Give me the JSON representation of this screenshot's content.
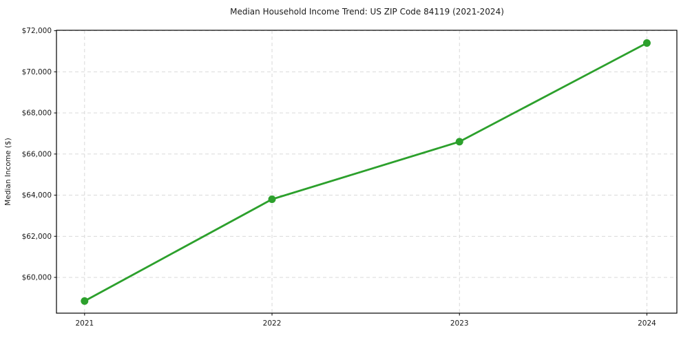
{
  "chart_data": {
    "type": "line",
    "title": "Median Household Income Trend: US ZIP Code 84119 (2021-2024)",
    "xlabel": "",
    "ylabel": "Median Income ($)",
    "x": [
      2021,
      2022,
      2023,
      2024
    ],
    "series": [
      {
        "name": "Median Household Income",
        "values": [
          58850,
          63800,
          66600,
          71400
        ]
      }
    ],
    "x_tick_labels": [
      "2021",
      "2022",
      "2023",
      "2024"
    ],
    "y_ticks": [
      60000,
      62000,
      64000,
      66000,
      68000,
      70000,
      72000
    ],
    "y_tick_labels": [
      "$60,000",
      "$62,000",
      "$64,000",
      "$66,000",
      "$68,000",
      "$70,000",
      "$72,000"
    ],
    "xlim": [
      2020.85,
      2024.16
    ],
    "ylim": [
      58260,
      72020
    ],
    "grid": true,
    "grid_style": "dashed",
    "legend": "none",
    "colors": {
      "line": "#2ca02c",
      "marker": "#2ca02c",
      "grid": "#d4d4d4",
      "spine": "#000000",
      "background": "#ffffff",
      "text": "#1a1a1a"
    }
  }
}
